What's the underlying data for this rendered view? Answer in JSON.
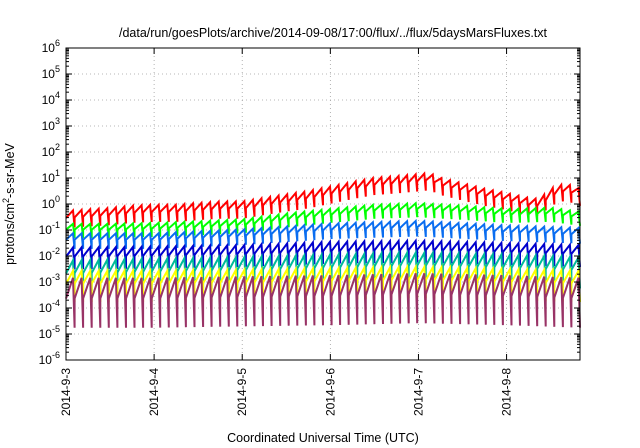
{
  "chart_data": {
    "type": "line",
    "title": "/data/run/goesPlots/archive/2014-09-08/17:00/flux/../flux/5daysMarsFluxes.txt",
    "xlabel": "Coordinated Universal Time (UTC)",
    "ylabel": {
      "prefix": "protons/cm",
      "sup": "2",
      "suffix": "-s-sr-MeV"
    },
    "yscale": "log",
    "ylim": [
      1e-06,
      1000000.0
    ],
    "xlim": [
      "2014-09-03",
      "2014-09-08 20:00"
    ],
    "grid": true,
    "x_ticks": [
      "2014-9-3",
      "2014-9-4",
      "2014-9-5",
      "2014-9-6",
      "2014-9-7",
      "2014-9-8"
    ],
    "y_ticks": [
      {
        "base": "10",
        "exp": "-6"
      },
      {
        "base": "10",
        "exp": "-5"
      },
      {
        "base": "10",
        "exp": "-4"
      },
      {
        "base": "10",
        "exp": "-3"
      },
      {
        "base": "10",
        "exp": "-2"
      },
      {
        "base": "10",
        "exp": "-1"
      },
      {
        "base": "10",
        "exp": "0"
      },
      {
        "base": "10",
        "exp": "1"
      },
      {
        "base": "10",
        "exp": "2"
      },
      {
        "base": "10",
        "exp": "3"
      },
      {
        "base": "10",
        "exp": "4"
      },
      {
        "base": "10",
        "exp": "5"
      },
      {
        "base": "10",
        "exp": "6"
      }
    ],
    "series": [
      {
        "color": "#ff0000",
        "x": [
          "2014-09-03 00:00",
          "2014-09-03 06:00",
          "2014-09-03 12:00",
          "2014-09-03 18:00",
          "2014-09-04 00:00",
          "2014-09-04 06:00",
          "2014-09-04 12:00",
          "2014-09-04 18:00",
          "2014-09-05 00:00",
          "2014-09-05 06:00",
          "2014-09-05 12:00",
          "2014-09-05 18:00",
          "2014-09-06 00:00",
          "2014-09-06 06:00",
          "2014-09-06 12:00",
          "2014-09-06 18:00",
          "2014-09-07 00:00",
          "2014-09-07 03:00",
          "2014-09-07 06:00",
          "2014-09-07 12:00",
          "2014-09-07 18:00",
          "2014-09-08 00:00",
          "2014-09-08 06:00",
          "2014-09-08 09:00",
          "2014-09-08 12:00",
          "2014-09-08 16:00",
          "2014-09-08 20:00"
        ],
        "y": [
          0.35,
          0.4,
          0.45,
          0.55,
          0.6,
          0.6,
          0.7,
          0.8,
          0.8,
          1.1,
          1.5,
          2.0,
          3.0,
          4.5,
          6.5,
          7.5,
          9.0,
          10.0,
          6.5,
          4.0,
          2.5,
          1.7,
          1.1,
          1.0,
          2.5,
          4.0,
          2.5
        ],
        "sawtooth": {
          "count": 60,
          "depth": 0.55
        }
      },
      {
        "color": "#00ff00",
        "x": [
          "2014-09-03 00:00",
          "2014-09-03 12:00",
          "2014-09-04 00:00",
          "2014-09-04 12:00",
          "2014-09-05 00:00",
          "2014-09-05 12:00",
          "2014-09-06 00:00",
          "2014-09-06 12:00",
          "2014-09-07 00:00",
          "2014-09-07 12:00",
          "2014-09-08 00:00",
          "2014-09-08 12:00",
          "2014-09-08 20:00"
        ],
        "y": [
          0.12,
          0.12,
          0.13,
          0.15,
          0.18,
          0.3,
          0.45,
          0.65,
          0.75,
          0.6,
          0.45,
          0.5,
          0.35
        ],
        "sawtooth": {
          "count": 60,
          "depth": 0.45
        }
      },
      {
        "color": "#0a6df0",
        "x": [
          "2014-09-03 00:00",
          "2014-09-04 00:00",
          "2014-09-05 00:00",
          "2014-09-06 00:00",
          "2014-09-07 00:00",
          "2014-09-08 00:00",
          "2014-09-08 20:00"
        ],
        "y": [
          0.05,
          0.05,
          0.07,
          0.12,
          0.15,
          0.1,
          0.08
        ],
        "sawtooth": {
          "count": 60,
          "depth": 0.5
        }
      },
      {
        "color": "#0000cc",
        "x": [
          "2014-09-03 00:00",
          "2014-09-04 00:00",
          "2014-09-05 00:00",
          "2014-09-06 00:00",
          "2014-09-07 00:00",
          "2014-09-08 00:00",
          "2014-09-08 20:00"
        ],
        "y": [
          0.012,
          0.013,
          0.015,
          0.02,
          0.022,
          0.018,
          0.015
        ],
        "sawtooth": {
          "count": 60,
          "depth": 0.7
        }
      },
      {
        "color": "#00bb99",
        "x": [
          "2014-09-03 00:00",
          "2014-09-04 00:00",
          "2014-09-05 00:00",
          "2014-09-06 00:00",
          "2014-09-07 00:00",
          "2014-09-08 00:00",
          "2014-09-08 20:00"
        ],
        "y": [
          0.003,
          0.0035,
          0.004,
          0.005,
          0.006,
          0.005,
          0.004
        ],
        "sawtooth": {
          "count": 60,
          "depth": 1.0
        }
      },
      {
        "color": "#ffff00",
        "x": [
          "2014-09-03 00:00",
          "2014-09-04 00:00",
          "2014-09-05 00:00",
          "2014-09-06 00:00",
          "2014-09-07 00:00",
          "2014-09-08 00:00",
          "2014-09-08 20:00"
        ],
        "y": [
          0.0012,
          0.0012,
          0.0013,
          0.0015,
          0.0017,
          0.0014,
          0.0012
        ],
        "sawtooth": {
          "count": 60,
          "depth": 1.0
        }
      },
      {
        "color": "#993366",
        "x": [
          "2014-09-03 00:00",
          "2014-09-04 00:00",
          "2014-09-05 00:00",
          "2014-09-06 00:00",
          "2014-09-07 00:00",
          "2014-09-08 00:00",
          "2014-09-08 20:00"
        ],
        "y": [
          0.0004,
          0.0004,
          0.00045,
          0.0005,
          0.0006,
          0.0005,
          0.0004
        ],
        "sawtooth": {
          "count": 60,
          "depth": 1.6
        }
      }
    ]
  }
}
